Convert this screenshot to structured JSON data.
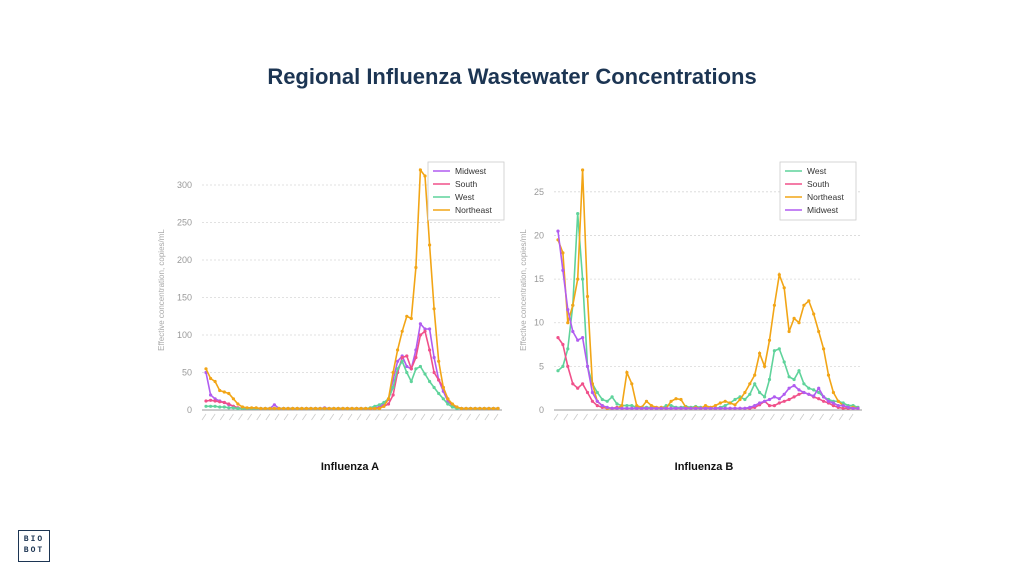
{
  "title": "Regional Influenza Wastewater Concentrations",
  "logo": {
    "line1": "BIO",
    "line2": "BOT"
  },
  "charts": [
    {
      "caption": "Influenza A"
    },
    {
      "caption": "Influenza B"
    }
  ],
  "chart_data": [
    {
      "type": "line",
      "title": "Influenza A",
      "ylabel": "Effective concentration, copies/mL",
      "xlabel": "",
      "ylim": [
        0,
        320
      ],
      "yticks": [
        0,
        50,
        100,
        150,
        200,
        250,
        300
      ],
      "grid": true,
      "legend_position": "top-right",
      "series": [
        {
          "name": "Midwest",
          "color": "#b15cf0",
          "values": [
            50,
            20,
            15,
            12,
            10,
            7,
            5,
            3,
            2,
            2,
            2,
            2,
            2,
            2,
            2,
            7,
            2,
            2,
            2,
            2,
            2,
            2,
            2,
            2,
            2,
            2,
            3,
            2,
            2,
            2,
            2,
            2,
            2,
            2,
            2,
            2,
            2,
            3,
            4,
            8,
            14,
            40,
            65,
            72,
            58,
            55,
            80,
            115,
            108,
            108,
            70,
            40,
            25,
            12,
            6,
            3,
            2,
            2,
            2,
            2,
            2,
            2,
            2,
            2,
            2
          ]
        },
        {
          "name": "South",
          "color": "#f0508a",
          "values": [
            12,
            13,
            12,
            11,
            10,
            8,
            5,
            3,
            2,
            2,
            2,
            2,
            2,
            2,
            2,
            2,
            2,
            2,
            2,
            2,
            2,
            2,
            2,
            2,
            2,
            2,
            2,
            2,
            2,
            2,
            2,
            2,
            2,
            2,
            2,
            2,
            2,
            2,
            3,
            5,
            8,
            20,
            50,
            70,
            72,
            55,
            70,
            100,
            105,
            80,
            50,
            40,
            30,
            15,
            6,
            3,
            2,
            2,
            2,
            2,
            2,
            2,
            2,
            2,
            2
          ]
        },
        {
          "name": "West",
          "color": "#5fd39b",
          "values": [
            5,
            5,
            5,
            4,
            4,
            3,
            3,
            2,
            2,
            2,
            2,
            2,
            2,
            2,
            2,
            2,
            2,
            2,
            2,
            2,
            2,
            2,
            2,
            2,
            2,
            2,
            2,
            2,
            2,
            2,
            2,
            2,
            2,
            2,
            2,
            2,
            3,
            5,
            7,
            10,
            15,
            30,
            55,
            65,
            50,
            38,
            55,
            58,
            48,
            38,
            30,
            22,
            15,
            8,
            4,
            2,
            2,
            2,
            2,
            2,
            2,
            2,
            2,
            2,
            2
          ]
        },
        {
          "name": "Northeast",
          "color": "#f2a516",
          "values": [
            55,
            42,
            38,
            26,
            24,
            22,
            15,
            8,
            4,
            3,
            3,
            3,
            2,
            2,
            2,
            2,
            2,
            2,
            2,
            2,
            2,
            2,
            2,
            2,
            2,
            2,
            2,
            2,
            2,
            2,
            2,
            2,
            2,
            2,
            2,
            2,
            2,
            2,
            2,
            5,
            15,
            50,
            80,
            105,
            125,
            122,
            190,
            320,
            312,
            220,
            135,
            65,
            30,
            15,
            8,
            4,
            2,
            2,
            2,
            2,
            2,
            2,
            2,
            2,
            2
          ]
        }
      ]
    },
    {
      "type": "line",
      "title": "Influenza B",
      "ylabel": "Effective concentration, copies/mL",
      "xlabel": "",
      "ylim": [
        0,
        27.5
      ],
      "yticks": [
        0,
        5,
        10,
        15,
        20,
        25
      ],
      "grid": true,
      "legend_position": "top-right",
      "series": [
        {
          "name": "West",
          "color": "#5fd39b",
          "values": [
            4.5,
            5,
            7,
            12,
            22.5,
            15,
            5,
            3,
            2,
            1.2,
            1,
            1.5,
            0.7,
            0.5,
            0.5,
            0.5,
            0.3,
            0.3,
            0.3,
            0.3,
            0.2,
            0.2,
            0.5,
            0.5,
            0.3,
            0.3,
            0.4,
            0.3,
            0.4,
            0.3,
            0.3,
            0.2,
            0.2,
            0.3,
            0.5,
            0.8,
            1.2,
            1.5,
            1.2,
            1.8,
            3,
            2,
            1.5,
            3.5,
            6.8,
            7,
            5.5,
            3.8,
            3.5,
            4.5,
            3,
            2.5,
            2.3,
            2,
            1.5,
            1.2,
            1,
            1,
            0.8,
            0.5,
            0.5,
            0.3
          ]
        },
        {
          "name": "South",
          "color": "#f0508a",
          "values": [
            8.3,
            7.5,
            5,
            3,
            2.5,
            3,
            2,
            1,
            0.5,
            0.3,
            0.2,
            0.2,
            0.3,
            0.2,
            0.2,
            0.2,
            0.2,
            0.2,
            0.2,
            0.2,
            0.2,
            0.2,
            0.2,
            0.2,
            0.2,
            0.2,
            0.2,
            0.2,
            0.2,
            0.2,
            0.2,
            0.2,
            0.2,
            0.2,
            0.2,
            0.2,
            0.2,
            0.2,
            0.2,
            0.2,
            0.3,
            0.6,
            1,
            0.5,
            0.5,
            0.8,
            1,
            1.2,
            1.5,
            1.8,
            2,
            1.8,
            1.5,
            1.3,
            1,
            0.8,
            0.5,
            0.3,
            0.2,
            0.2,
            0.2,
            0.2
          ]
        },
        {
          "name": "Northeast",
          "color": "#f2a516",
          "values": [
            19.5,
            18,
            10,
            12,
            15,
            27.5,
            13,
            3,
            1,
            0.5,
            0.2,
            0.2,
            0.2,
            0.5,
            4.3,
            3,
            0.5,
            0.3,
            1,
            0.5,
            0.3,
            0.3,
            0.2,
            1,
            1.3,
            1.2,
            0.3,
            0.2,
            0.3,
            0.2,
            0.5,
            0.3,
            0.5,
            0.8,
            1,
            0.8,
            0.6,
            1.2,
            2,
            3,
            4,
            6.5,
            5,
            8,
            12,
            15.5,
            14,
            9,
            10.5,
            10,
            12,
            12.5,
            11,
            9,
            7,
            4,
            2,
            1,
            0.5,
            0.3,
            0.3,
            0.2
          ]
        },
        {
          "name": "Midwest",
          "color": "#b15cf0",
          "values": [
            20.5,
            16,
            11.5,
            9,
            8,
            8.3,
            5,
            2,
            1,
            0.5,
            0.3,
            0.2,
            0.2,
            0.2,
            0.2,
            0.2,
            0.2,
            0.2,
            0.2,
            0.2,
            0.2,
            0.2,
            0.2,
            0.2,
            0.2,
            0.2,
            0.2,
            0.2,
            0.2,
            0.2,
            0.2,
            0.2,
            0.2,
            0.2,
            0.2,
            0.2,
            0.2,
            0.2,
            0.2,
            0.3,
            0.5,
            0.8,
            1,
            1.2,
            1.5,
            1.3,
            1.8,
            2.5,
            2.8,
            2.3,
            2,
            1.8,
            1.6,
            2.5,
            1.5,
            1,
            0.8,
            0.5,
            0.5,
            0.3,
            0.2,
            0.2
          ]
        }
      ]
    }
  ]
}
